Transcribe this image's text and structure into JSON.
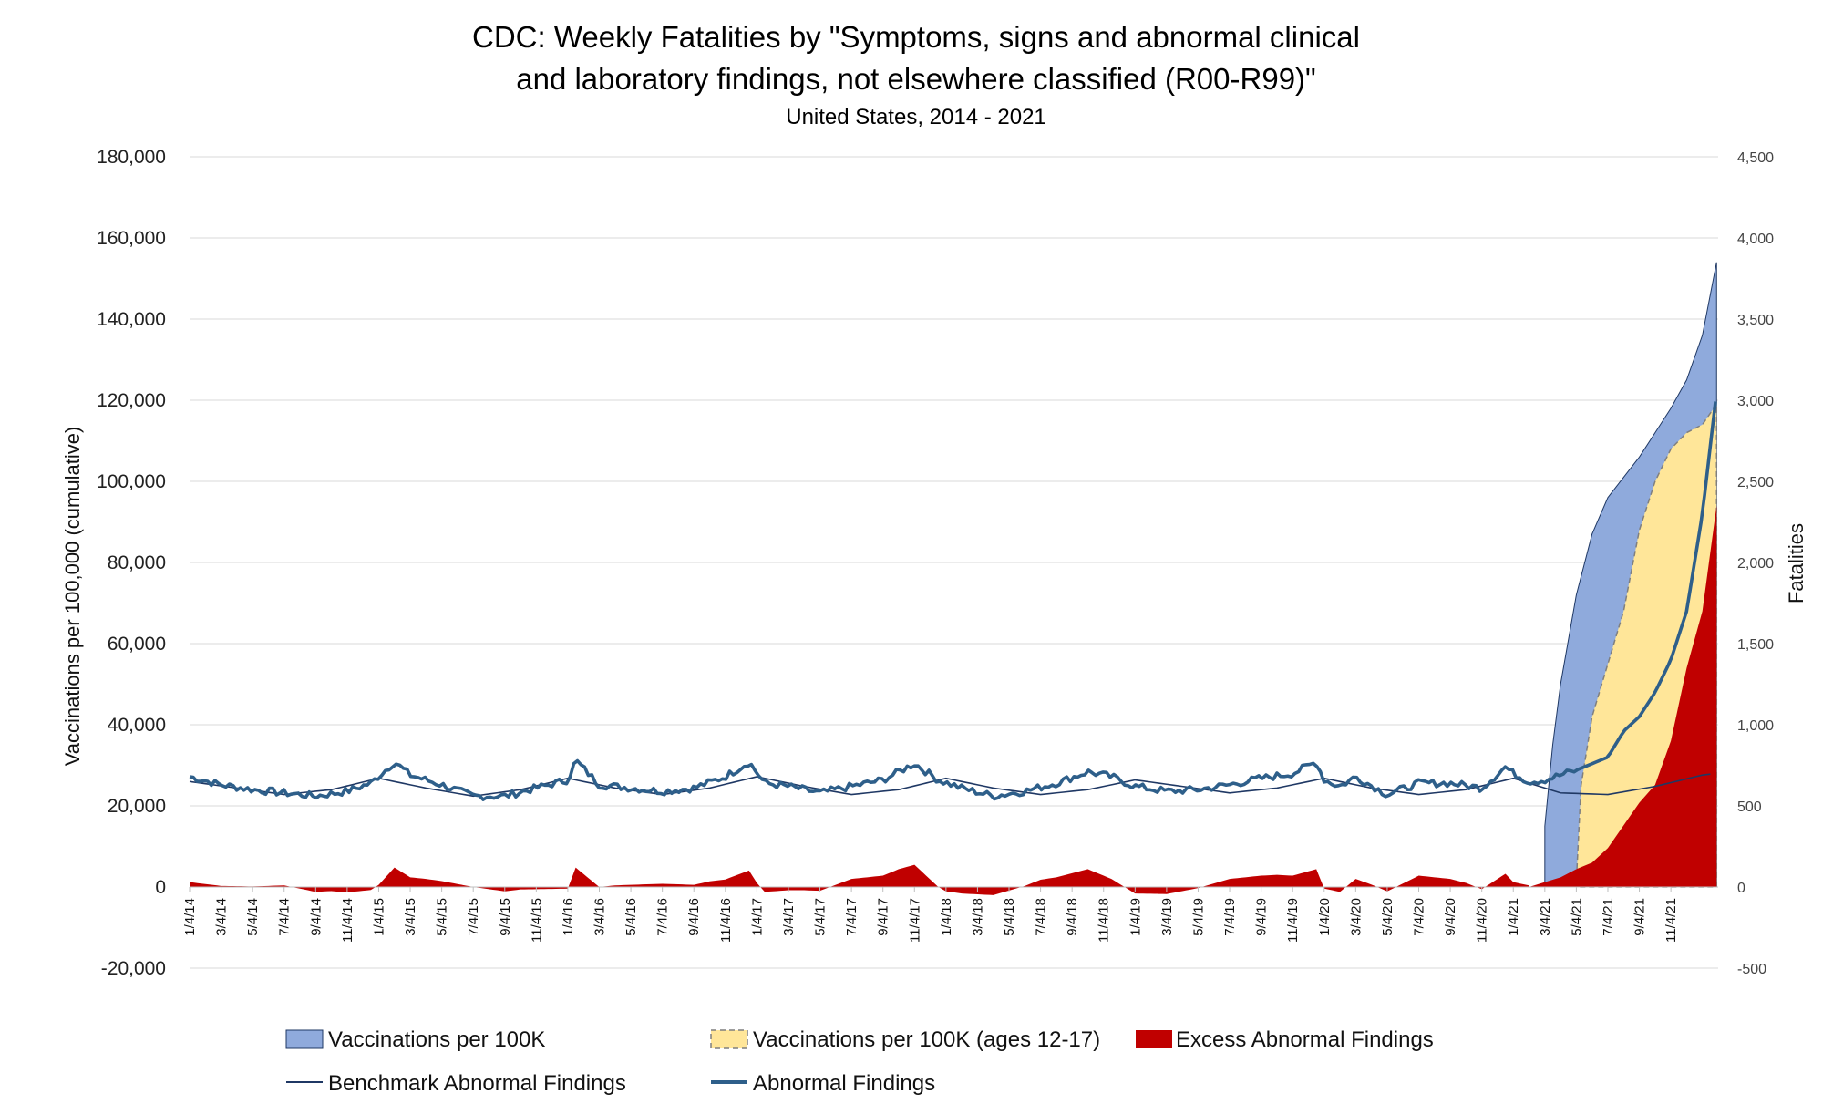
{
  "chart_data": {
    "type": "area",
    "title": "CDC: Weekly Fatalities by \"Symptoms, signs and abnormal clinical",
    "title_line2": "and laboratory findings, not elsewhere classified (R00-R99)\"",
    "subtitle": "United States, 2014 - 2021",
    "ylabel": "Vaccinations per 100,000 (cumulative)",
    "y2label": "Fatalities",
    "ylim": [
      -20000,
      180000
    ],
    "y2lim": [
      -500,
      4500
    ],
    "y_ticks": [
      "180,000",
      "160,000",
      "140,000",
      "120,000",
      "100,000",
      "80,000",
      "60,000",
      "40,000",
      "20,000",
      "0",
      "-20,000"
    ],
    "y2_ticks": [
      "4,500",
      "4,000",
      "3,500",
      "3,000",
      "2,500",
      "2,000",
      "1,500",
      "1,000",
      "500",
      "0",
      "-500"
    ],
    "x_ticks": [
      "1/4/14",
      "3/4/14",
      "5/4/14",
      "7/4/14",
      "9/4/14",
      "11/4/14",
      "1/4/15",
      "3/4/15",
      "5/4/15",
      "7/4/15",
      "9/4/15",
      "11/4/15",
      "1/4/16",
      "3/4/16",
      "5/4/16",
      "7/4/16",
      "9/4/16",
      "11/4/16",
      "1/4/17",
      "3/4/17",
      "5/4/17",
      "7/4/17",
      "9/4/17",
      "11/4/17",
      "1/4/18",
      "3/4/18",
      "5/4/18",
      "7/4/18",
      "9/4/18",
      "11/4/18",
      "1/4/19",
      "3/4/19",
      "5/4/19",
      "7/4/19",
      "9/4/19",
      "11/4/19",
      "1/4/20",
      "3/4/20",
      "5/4/20",
      "7/4/20",
      "9/4/20",
      "11/4/20",
      "1/4/21",
      "3/4/21",
      "5/4/21",
      "7/4/21",
      "9/4/21",
      "11/4/21"
    ],
    "grid": true,
    "legend_position": "bottom",
    "series": [
      {
        "name": "Vaccinations per 100K",
        "axis": "left",
        "kind": "area",
        "color": "#8faadc",
        "x_months": [
          86.0,
          86.5,
          87,
          88,
          89,
          90,
          91,
          92,
          93,
          94,
          95,
          96,
          96.9
        ],
        "values": [
          15000,
          35000,
          50000,
          72000,
          87000,
          96000,
          101000,
          106000,
          112000,
          118000,
          125000,
          136000,
          154000
        ]
      },
      {
        "name": "Vaccinations per 100K (ages 12-17)",
        "axis": "left",
        "kind": "area",
        "color": "#ffe699",
        "x_months": [
          88.0,
          88.3,
          89,
          90,
          91,
          92,
          93,
          94,
          95,
          96,
          96.9
        ],
        "values": [
          1500,
          25000,
          42000,
          55000,
          68000,
          88000,
          100000,
          108000,
          112000,
          114000,
          119000
        ]
      },
      {
        "name": "Excess Abnormal Findings",
        "axis": "right",
        "kind": "area",
        "color": "#c00000",
        "x_months": [
          85.0,
          86.0,
          87.0,
          88.0,
          89.0,
          90.0,
          91.0,
          92.0,
          93.0,
          94.0,
          95.0,
          96.0,
          96.9
        ],
        "values": [
          0,
          30,
          60,
          110,
          150,
          240,
          380,
          520,
          630,
          900,
          1350,
          1700,
          2350
        ]
      },
      {
        "name": "Benchmark Abnormal Findings",
        "axis": "right",
        "kind": "line",
        "color": "#1f3864",
        "x_months": [
          0,
          3,
          6,
          9,
          12,
          15,
          18,
          21,
          24,
          27,
          30,
          33,
          36,
          39,
          42,
          45,
          48,
          51,
          54,
          57,
          60,
          63,
          66,
          69,
          72,
          75,
          78,
          81,
          84,
          87,
          90,
          93,
          96,
          96.9
        ],
        "values": [
          650,
          610,
          570,
          600,
          670,
          610,
          560,
          600,
          670,
          610,
          570,
          610,
          680,
          620,
          570,
          600,
          670,
          610,
          570,
          600,
          660,
          620,
          580,
          610,
          670,
          610,
          570,
          600,
          670,
          580,
          570,
          620,
          690,
          700
        ]
      },
      {
        "name": "Abnormal Findings",
        "axis": "right",
        "kind": "line",
        "color": "#2e5f8a",
        "x_months": [
          0,
          2,
          4,
          6,
          8,
          10,
          11.5,
          13,
          14,
          16,
          18,
          20,
          22,
          24,
          24.5,
          26,
          28,
          30,
          32,
          34,
          35.5,
          36.5,
          38,
          40,
          42,
          44,
          46,
          47.5,
          49,
          51,
          53,
          55,
          57,
          58.5,
          60,
          62,
          64,
          66,
          68,
          70,
          71.5,
          72,
          73,
          74,
          76,
          78,
          80,
          82,
          83.5,
          84,
          85,
          86,
          87,
          88,
          89,
          90,
          91,
          92,
          93,
          94,
          95,
          96,
          96.9
        ],
        "values": [
          680,
          630,
          600,
          580,
          560,
          590,
          640,
          770,
          690,
          630,
          560,
          560,
          610,
          660,
          780,
          630,
          610,
          590,
          610,
          680,
          770,
          640,
          620,
          580,
          620,
          660,
          760,
          660,
          610,
          560,
          590,
          640,
          710,
          680,
          620,
          590,
          600,
          630,
          670,
          700,
          770,
          660,
          620,
          680,
          570,
          640,
          640,
          610,
          740,
          700,
          650,
          660,
          690,
          720,
          760,
          800,
          960,
          1050,
          1200,
          1400,
          1700,
          2300,
          3050
        ]
      }
    ]
  }
}
